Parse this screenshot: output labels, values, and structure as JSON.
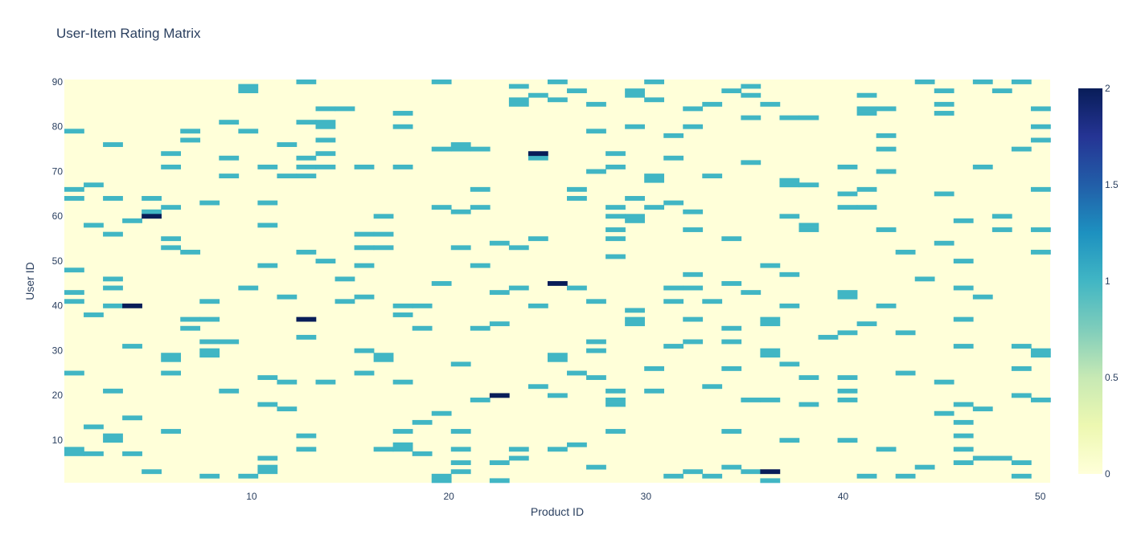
{
  "chart_data": {
    "type": "heatmap",
    "title": "User-Item Rating Matrix",
    "xlabel": "Product ID",
    "ylabel": "User ID",
    "x_range": [
      1,
      50
    ],
    "y_range": [
      1,
      90
    ],
    "x_ticks": [
      10,
      20,
      30,
      40,
      50
    ],
    "y_ticks": [
      10,
      20,
      30,
      40,
      50,
      60,
      70,
      80,
      90
    ],
    "colorscale": "YlGnBu",
    "colorscale_stops": [
      "#ffffd9",
      "#edf8b1",
      "#c7e9b4",
      "#7fcdbb",
      "#41b6c4",
      "#1d91c0",
      "#225ea8",
      "#253494",
      "#081d58"
    ],
    "zmin": 0,
    "zmax": 2,
    "colorbar_ticks": [
      "0",
      "0.5",
      "1",
      "1.5",
      "2"
    ],
    "cells_value_2": [
      [
        5,
        60
      ],
      [
        4,
        40
      ],
      [
        13,
        37
      ],
      [
        26,
        45
      ],
      [
        25,
        74
      ],
      [
        23,
        20
      ],
      [
        37,
        3
      ]
    ],
    "cells_value_1": [
      [
        1,
        79
      ],
      [
        1,
        66
      ],
      [
        1,
        64
      ],
      [
        1,
        48
      ],
      [
        1,
        43
      ],
      [
        1,
        41
      ],
      [
        1,
        25
      ],
      [
        1,
        8
      ],
      [
        1,
        7
      ],
      [
        2,
        67
      ],
      [
        2,
        58
      ],
      [
        2,
        38
      ],
      [
        2,
        13
      ],
      [
        2,
        7
      ],
      [
        3,
        76
      ],
      [
        3,
        64
      ],
      [
        3,
        56
      ],
      [
        3,
        46
      ],
      [
        3,
        44
      ],
      [
        3,
        40
      ],
      [
        3,
        21
      ],
      [
        3,
        11
      ],
      [
        3,
        10
      ],
      [
        4,
        59
      ],
      [
        4,
        31
      ],
      [
        4,
        15
      ],
      [
        4,
        7
      ],
      [
        5,
        64
      ],
      [
        5,
        61
      ],
      [
        5,
        3
      ],
      [
        6,
        74
      ],
      [
        6,
        71
      ],
      [
        6,
        62
      ],
      [
        6,
        55
      ],
      [
        6,
        53
      ],
      [
        6,
        29
      ],
      [
        6,
        28
      ],
      [
        6,
        25
      ],
      [
        6,
        12
      ],
      [
        7,
        79
      ],
      [
        7,
        77
      ],
      [
        7,
        52
      ],
      [
        7,
        37
      ],
      [
        7,
        35
      ],
      [
        8,
        63
      ],
      [
        8,
        41
      ],
      [
        8,
        37
      ],
      [
        8,
        32
      ],
      [
        8,
        30
      ],
      [
        8,
        29
      ],
      [
        8,
        2
      ],
      [
        9,
        81
      ],
      [
        9,
        73
      ],
      [
        9,
        69
      ],
      [
        9,
        32
      ],
      [
        9,
        21
      ],
      [
        10,
        89
      ],
      [
        10,
        88
      ],
      [
        10,
        79
      ],
      [
        10,
        44
      ],
      [
        10,
        2
      ],
      [
        11,
        71
      ],
      [
        11,
        63
      ],
      [
        11,
        58
      ],
      [
        11,
        49
      ],
      [
        11,
        24
      ],
      [
        11,
        18
      ],
      [
        11,
        6
      ],
      [
        11,
        4
      ],
      [
        11,
        3
      ],
      [
        12,
        76
      ],
      [
        12,
        69
      ],
      [
        12,
        42
      ],
      [
        12,
        23
      ],
      [
        12,
        17
      ],
      [
        13,
        90
      ],
      [
        13,
        81
      ],
      [
        13,
        73
      ],
      [
        13,
        71
      ],
      [
        13,
        69
      ],
      [
        13,
        52
      ],
      [
        13,
        33
      ],
      [
        13,
        11
      ],
      [
        13,
        8
      ],
      [
        14,
        84
      ],
      [
        14,
        81
      ],
      [
        14,
        80
      ],
      [
        14,
        77
      ],
      [
        14,
        74
      ],
      [
        14,
        71
      ],
      [
        14,
        50
      ],
      [
        14,
        23
      ],
      [
        15,
        84
      ],
      [
        15,
        46
      ],
      [
        15,
        41
      ],
      [
        16,
        71
      ],
      [
        16,
        56
      ],
      [
        16,
        53
      ],
      [
        16,
        49
      ],
      [
        16,
        42
      ],
      [
        16,
        30
      ],
      [
        16,
        25
      ],
      [
        17,
        60
      ],
      [
        17,
        56
      ],
      [
        17,
        53
      ],
      [
        17,
        29
      ],
      [
        17,
        28
      ],
      [
        17,
        8
      ],
      [
        18,
        83
      ],
      [
        18,
        80
      ],
      [
        18,
        71
      ],
      [
        18,
        40
      ],
      [
        18,
        38
      ],
      [
        18,
        23
      ],
      [
        18,
        12
      ],
      [
        18,
        9
      ],
      [
        18,
        8
      ],
      [
        19,
        40
      ],
      [
        19,
        35
      ],
      [
        19,
        14
      ],
      [
        19,
        7
      ],
      [
        20,
        90
      ],
      [
        20,
        75
      ],
      [
        20,
        62
      ],
      [
        20,
        45
      ],
      [
        20,
        16
      ],
      [
        20,
        2
      ],
      [
        20,
        1
      ],
      [
        21,
        75
      ],
      [
        21,
        76
      ],
      [
        21,
        61
      ],
      [
        21,
        53
      ],
      [
        21,
        27
      ],
      [
        21,
        12
      ],
      [
        21,
        8
      ],
      [
        21,
        5
      ],
      [
        21,
        3
      ],
      [
        22,
        75
      ],
      [
        22,
        66
      ],
      [
        22,
        62
      ],
      [
        22,
        49
      ],
      [
        22,
        35
      ],
      [
        22,
        19
      ],
      [
        23,
        54
      ],
      [
        23,
        43
      ],
      [
        23,
        36
      ],
      [
        23,
        5
      ],
      [
        23,
        1
      ],
      [
        24,
        89
      ],
      [
        24,
        86
      ],
      [
        24,
        85
      ],
      [
        24,
        53
      ],
      [
        24,
        44
      ],
      [
        24,
        8
      ],
      [
        24,
        6
      ],
      [
        25,
        87
      ],
      [
        25,
        73
      ],
      [
        25,
        55
      ],
      [
        25,
        40
      ],
      [
        25,
        22
      ],
      [
        26,
        90
      ],
      [
        26,
        86
      ],
      [
        26,
        29
      ],
      [
        26,
        28
      ],
      [
        26,
        20
      ],
      [
        26,
        8
      ],
      [
        27,
        88
      ],
      [
        27,
        66
      ],
      [
        27,
        64
      ],
      [
        27,
        44
      ],
      [
        27,
        25
      ],
      [
        27,
        9
      ],
      [
        28,
        85
      ],
      [
        28,
        79
      ],
      [
        28,
        70
      ],
      [
        28,
        41
      ],
      [
        28,
        32
      ],
      [
        28,
        30
      ],
      [
        28,
        24
      ],
      [
        28,
        4
      ],
      [
        29,
        74
      ],
      [
        29,
        71
      ],
      [
        29,
        62
      ],
      [
        29,
        60
      ],
      [
        29,
        57
      ],
      [
        29,
        55
      ],
      [
        29,
        51
      ],
      [
        29,
        21
      ],
      [
        29,
        19
      ],
      [
        29,
        18
      ],
      [
        29,
        12
      ],
      [
        30,
        88
      ],
      [
        30,
        87
      ],
      [
        30,
        80
      ],
      [
        30,
        64
      ],
      [
        30,
        60
      ],
      [
        30,
        59
      ],
      [
        30,
        39
      ],
      [
        30,
        37
      ],
      [
        30,
        36
      ],
      [
        31,
        90
      ],
      [
        31,
        86
      ],
      [
        31,
        69
      ],
      [
        31,
        68
      ],
      [
        31,
        62
      ],
      [
        31,
        26
      ],
      [
        31,
        21
      ],
      [
        32,
        78
      ],
      [
        32,
        73
      ],
      [
        32,
        63
      ],
      [
        32,
        44
      ],
      [
        32,
        41
      ],
      [
        32,
        31
      ],
      [
        32,
        2
      ],
      [
        33,
        84
      ],
      [
        33,
        80
      ],
      [
        33,
        61
      ],
      [
        33,
        57
      ],
      [
        33,
        47
      ],
      [
        33,
        44
      ],
      [
        33,
        37
      ],
      [
        33,
        32
      ],
      [
        33,
        3
      ],
      [
        34,
        85
      ],
      [
        34,
        69
      ],
      [
        34,
        41
      ],
      [
        34,
        22
      ],
      [
        34,
        2
      ],
      [
        35,
        88
      ],
      [
        35,
        55
      ],
      [
        35,
        45
      ],
      [
        35,
        35
      ],
      [
        35,
        32
      ],
      [
        35,
        26
      ],
      [
        35,
        12
      ],
      [
        35,
        4
      ],
      [
        36,
        89
      ],
      [
        36,
        87
      ],
      [
        36,
        82
      ],
      [
        36,
        72
      ],
      [
        36,
        43
      ],
      [
        36,
        19
      ],
      [
        36,
        3
      ],
      [
        37,
        85
      ],
      [
        37,
        49
      ],
      [
        37,
        37
      ],
      [
        37,
        36
      ],
      [
        37,
        30
      ],
      [
        37,
        29
      ],
      [
        37,
        19
      ],
      [
        37,
        1
      ],
      [
        38,
        82
      ],
      [
        38,
        68
      ],
      [
        38,
        67
      ],
      [
        38,
        60
      ],
      [
        38,
        47
      ],
      [
        38,
        40
      ],
      [
        38,
        27
      ],
      [
        38,
        10
      ],
      [
        39,
        82
      ],
      [
        39,
        67
      ],
      [
        39,
        58
      ],
      [
        39,
        57
      ],
      [
        39,
        24
      ],
      [
        39,
        18
      ],
      [
        40,
        33
      ],
      [
        41,
        71
      ],
      [
        41,
        65
      ],
      [
        41,
        62
      ],
      [
        41,
        43
      ],
      [
        41,
        42
      ],
      [
        41,
        34
      ],
      [
        41,
        24
      ],
      [
        41,
        21
      ],
      [
        41,
        19
      ],
      [
        41,
        10
      ],
      [
        42,
        87
      ],
      [
        42,
        84
      ],
      [
        42,
        83
      ],
      [
        42,
        66
      ],
      [
        42,
        62
      ],
      [
        42,
        36
      ],
      [
        42,
        2
      ],
      [
        43,
        84
      ],
      [
        43,
        78
      ],
      [
        43,
        75
      ],
      [
        43,
        70
      ],
      [
        43,
        57
      ],
      [
        43,
        40
      ],
      [
        43,
        8
      ],
      [
        44,
        52
      ],
      [
        44,
        34
      ],
      [
        44,
        25
      ],
      [
        44,
        2
      ],
      [
        45,
        90
      ],
      [
        45,
        46
      ],
      [
        45,
        4
      ],
      [
        46,
        88
      ],
      [
        46,
        85
      ],
      [
        46,
        83
      ],
      [
        46,
        65
      ],
      [
        46,
        54
      ],
      [
        46,
        23
      ],
      [
        46,
        16
      ],
      [
        47,
        59
      ],
      [
        47,
        50
      ],
      [
        47,
        44
      ],
      [
        47,
        37
      ],
      [
        47,
        31
      ],
      [
        47,
        18
      ],
      [
        47,
        14
      ],
      [
        47,
        11
      ],
      [
        47,
        8
      ],
      [
        47,
        5
      ],
      [
        48,
        90
      ],
      [
        48,
        71
      ],
      [
        48,
        42
      ],
      [
        48,
        17
      ],
      [
        48,
        6
      ],
      [
        49,
        88
      ],
      [
        49,
        60
      ],
      [
        49,
        57
      ],
      [
        49,
        6
      ],
      [
        50,
        90
      ],
      [
        50,
        75
      ],
      [
        50,
        31
      ],
      [
        50,
        26
      ],
      [
        50,
        20
      ],
      [
        50,
        5
      ],
      [
        50,
        2
      ],
      [
        51,
        84
      ],
      [
        51,
        80
      ],
      [
        51,
        77
      ],
      [
        51,
        66
      ],
      [
        51,
        57
      ],
      [
        51,
        52
      ],
      [
        51,
        30
      ],
      [
        51,
        29
      ],
      [
        51,
        19
      ]
    ]
  }
}
